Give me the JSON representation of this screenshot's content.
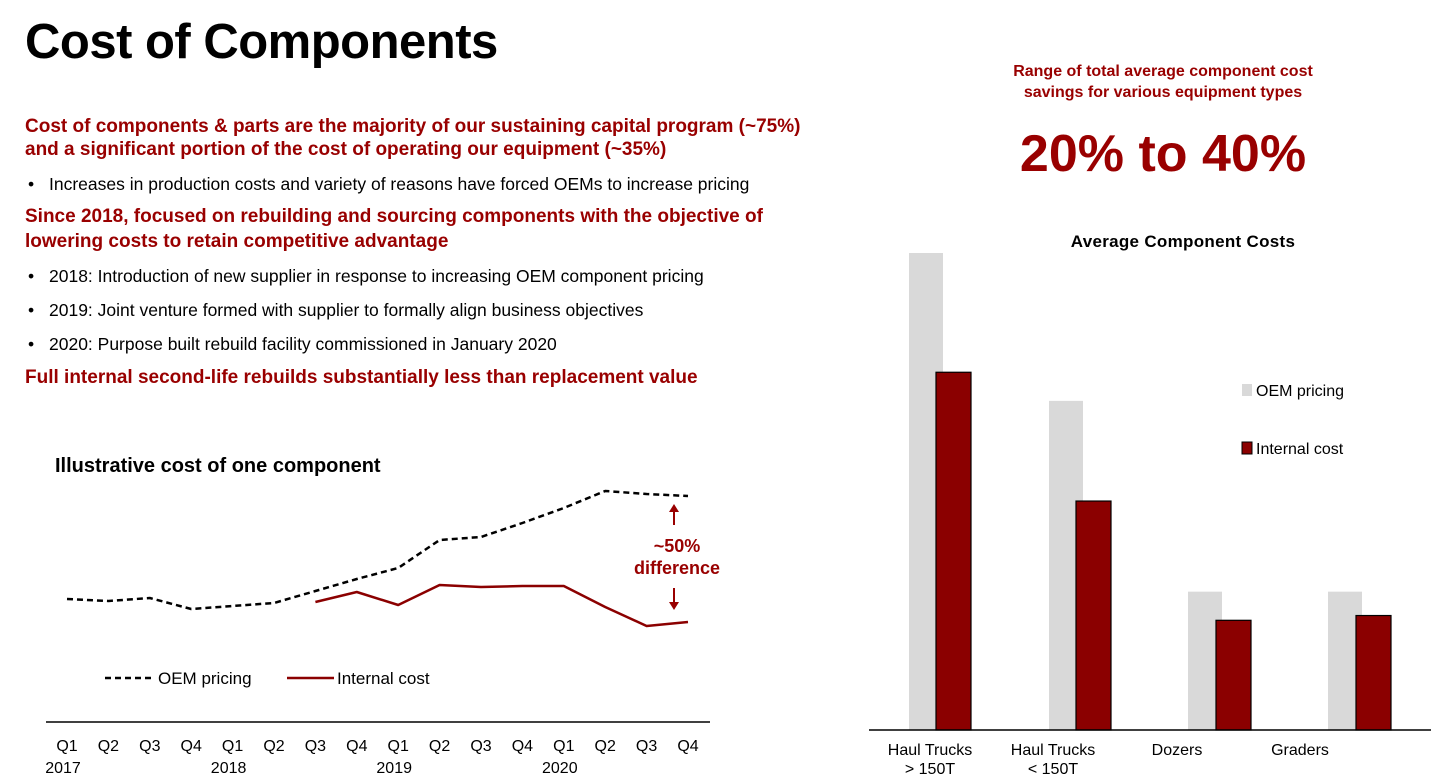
{
  "slide": {
    "title": "Cost of Components",
    "heading1_line1": "Cost of components & parts are the majority of our sustaining capital program (~75%)",
    "heading1_line2": "and a significant portion of the cost of operating our equipment (~35%)",
    "bullet1": "Increases in production costs and variety of reasons have forced OEMs to increase pricing",
    "heading2_line1": "Since 2018, focused on rebuilding and sourcing components with the objective of",
    "heading2_line2": "lowering costs to retain competitive advantage",
    "bullets2": [
      "2018:  Introduction of new supplier in response to increasing OEM component pricing",
      "2019:  Joint venture formed with supplier to formally align business objectives",
      "2020:  Purpose built rebuild facility commissioned in January 2020"
    ],
    "heading3": "Full internal second-life rebuilds substantially less than replacement value",
    "bullet_glyph": "•",
    "savings_caption_line1": "Range of total average component cost",
    "savings_caption_line2": "savings for various equipment types",
    "savings_range": "20% to 40%"
  },
  "colors": {
    "accent": "#990000",
    "oem_bar": "#d9d9d9",
    "internal": "#8b0000"
  },
  "chart_data": [
    {
      "type": "line",
      "title": "Illustrative cost of one component",
      "categories": [
        "Q1",
        "Q2",
        "Q3",
        "Q4",
        "Q1",
        "Q2",
        "Q3",
        "Q4",
        "Q1",
        "Q2",
        "Q3",
        "Q4",
        "Q1",
        "Q2",
        "Q3",
        "Q4"
      ],
      "year_labels": [
        {
          "index": 0,
          "label": "2017"
        },
        {
          "index": 4,
          "label": "2018"
        },
        {
          "index": 8,
          "label": "2019"
        },
        {
          "index": 12,
          "label": "2020"
        }
      ],
      "series": [
        {
          "name": "OEM pricing",
          "style": "dashed",
          "values": [
            123,
            121,
            124,
            113,
            116,
            119,
            131,
            143,
            154,
            182,
            185,
            199,
            214,
            231,
            228,
            226
          ]
        },
        {
          "name": "Internal cost",
          "style": "solid",
          "values": [
            null,
            null,
            null,
            null,
            null,
            null,
            120,
            130,
            117,
            137,
            135,
            136,
            136,
            115,
            96,
            100
          ]
        }
      ],
      "annotation": {
        "line1": "~50%",
        "line2": "difference"
      },
      "ylim": [
        0,
        250
      ],
      "legend": "bottom-left",
      "grid": false
    },
    {
      "type": "bar",
      "title": "Average Component Costs",
      "categories": [
        [
          "Haul Trucks",
          "> 150T"
        ],
        [
          "Haul Trucks",
          "< 150T"
        ],
        [
          "Dozers"
        ],
        [
          "Graders"
        ]
      ],
      "series": [
        {
          "name": "OEM pricing",
          "values": [
            100,
            69,
            29,
            29
          ]
        },
        {
          "name": "Internal cost",
          "values": [
            75,
            48,
            23,
            24
          ]
        }
      ],
      "ylim": [
        0,
        100
      ],
      "legend": "right",
      "grid": false
    }
  ]
}
